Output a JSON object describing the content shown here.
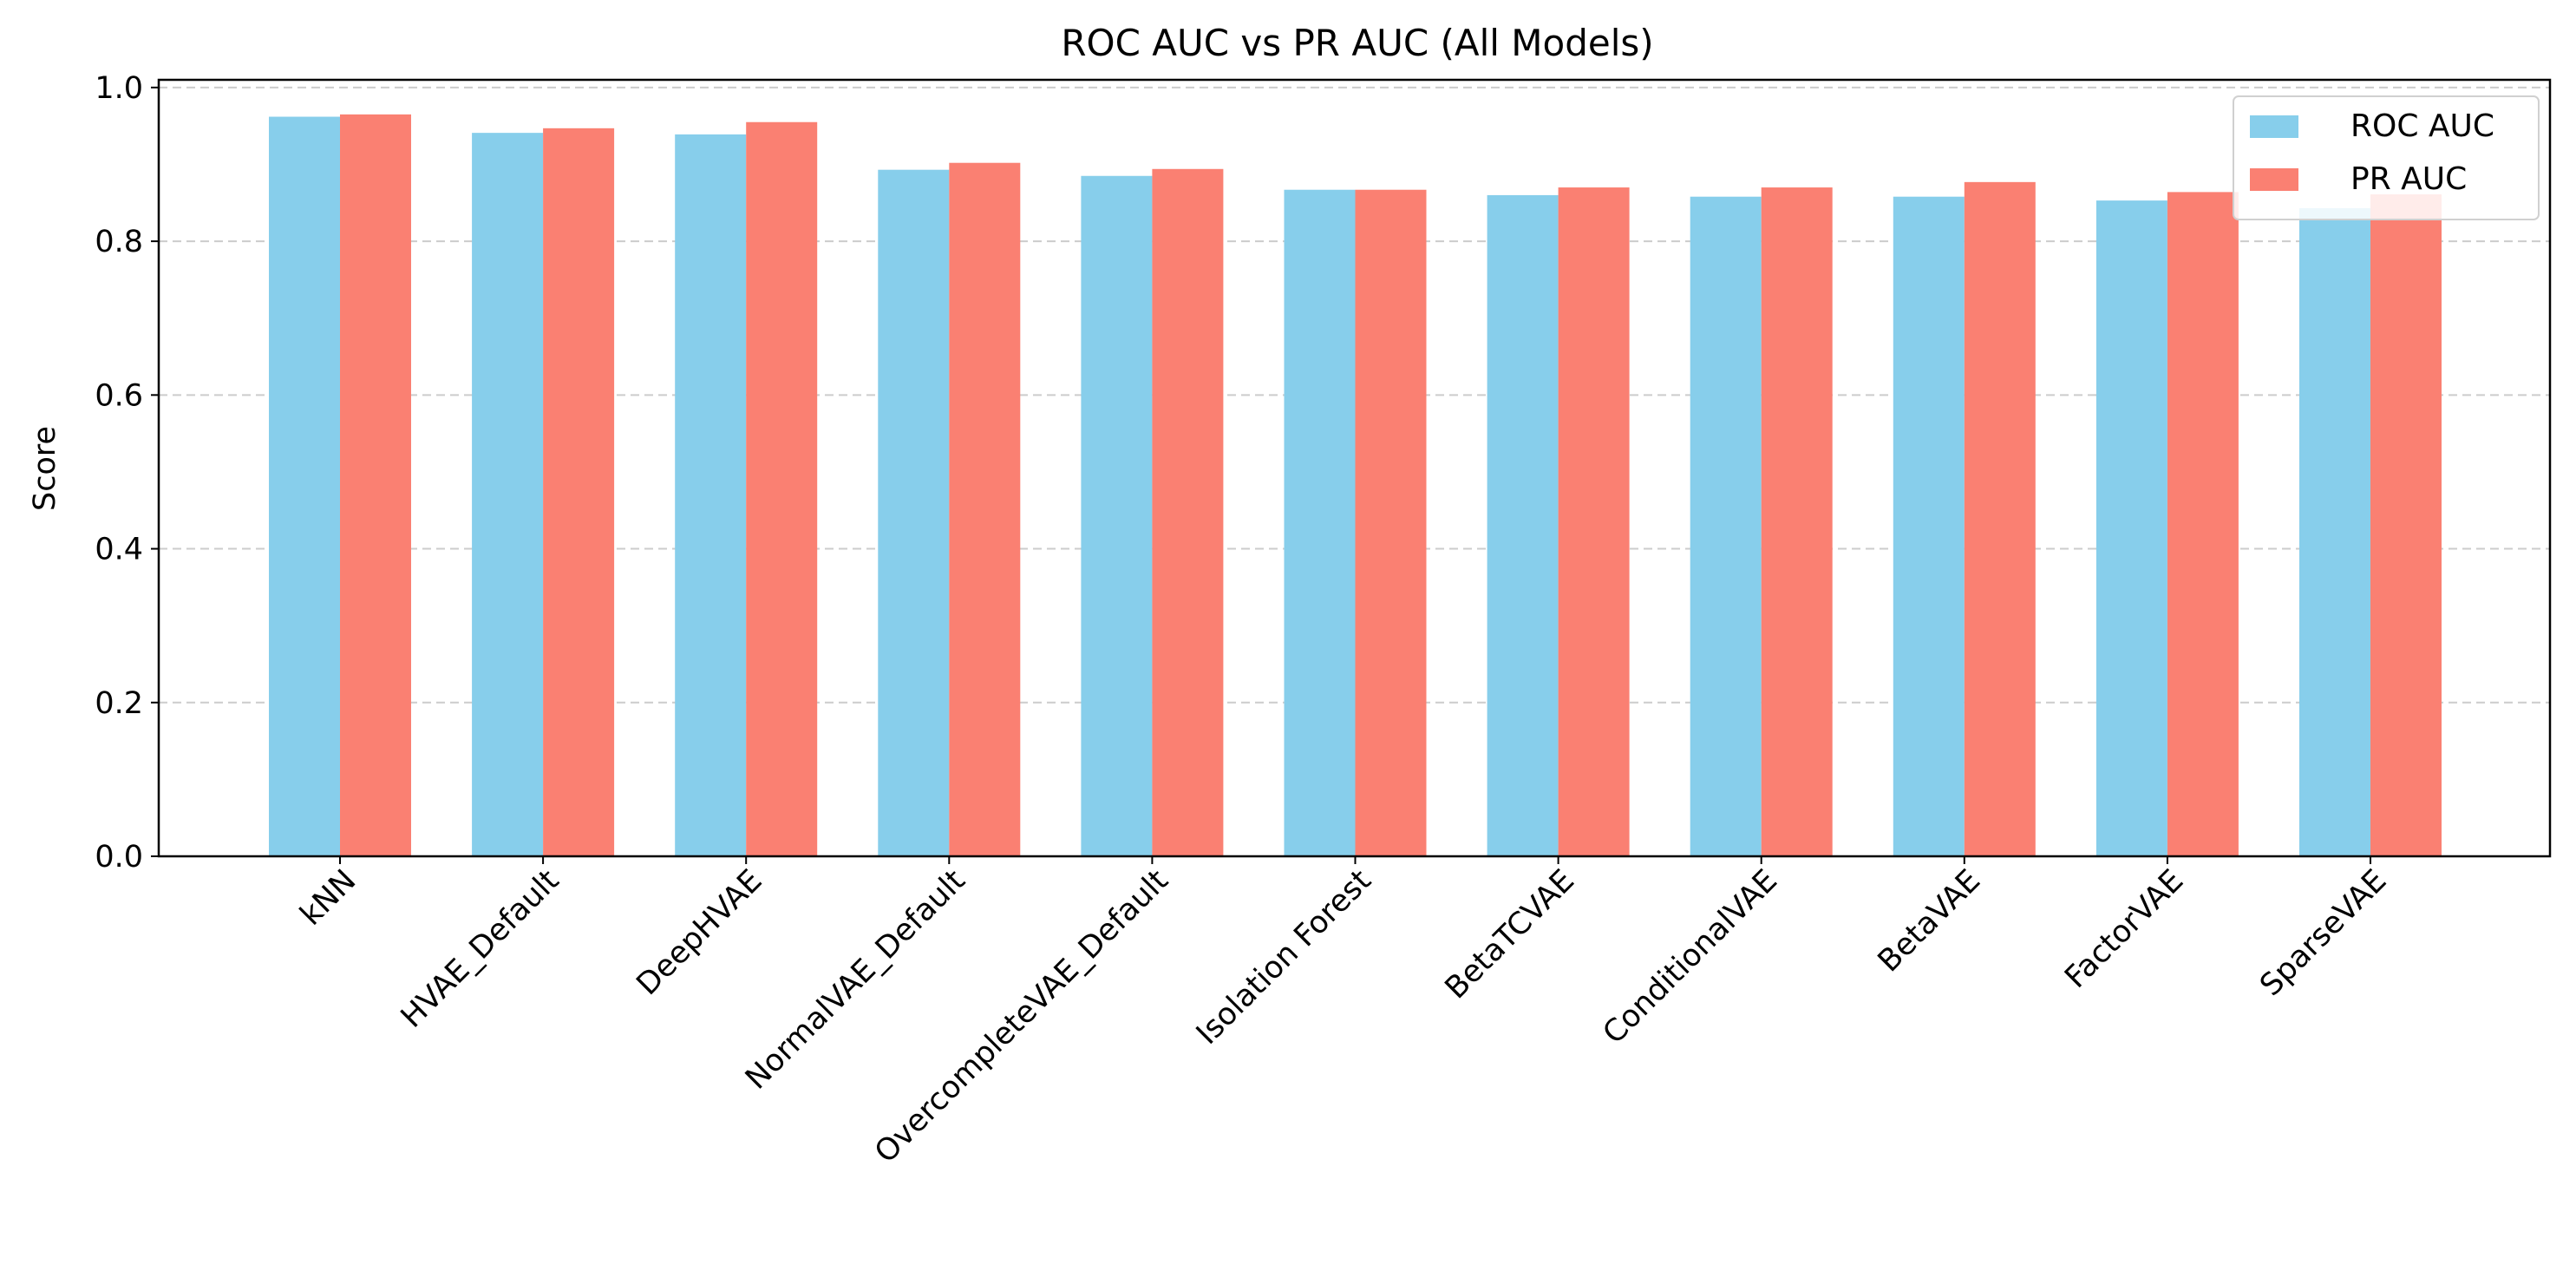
{
  "chart_data": {
    "type": "bar",
    "title": "ROC AUC vs PR AUC (All Models)",
    "xlabel": "",
    "ylabel": "Score",
    "ylim": [
      0,
      1.01
    ],
    "yticks": [
      "0.0",
      "0.2",
      "0.4",
      "0.6",
      "0.8",
      "1.0"
    ],
    "grid": "horizontal dashed",
    "legend_position": "top-right",
    "categories": [
      "kNN",
      "HVAE_Default",
      "DeepHVAE",
      "NormalVAE_Default",
      "OvercompleteVAE_Default",
      "Isolation Forest",
      "BetaTCVAE",
      "ConditionalVAE",
      "BetaVAE",
      "FactorVAE",
      "SparseVAE"
    ],
    "series": [
      {
        "name": "ROC AUC",
        "color": "#87CEEB",
        "values": [
          0.962,
          0.941,
          0.939,
          0.893,
          0.885,
          0.867,
          0.86,
          0.858,
          0.858,
          0.853,
          0.843
        ]
      },
      {
        "name": "PR AUC",
        "color": "#FA8072",
        "values": [
          0.965,
          0.947,
          0.955,
          0.902,
          0.894,
          0.867,
          0.87,
          0.87,
          0.877,
          0.864,
          0.861
        ]
      }
    ]
  }
}
